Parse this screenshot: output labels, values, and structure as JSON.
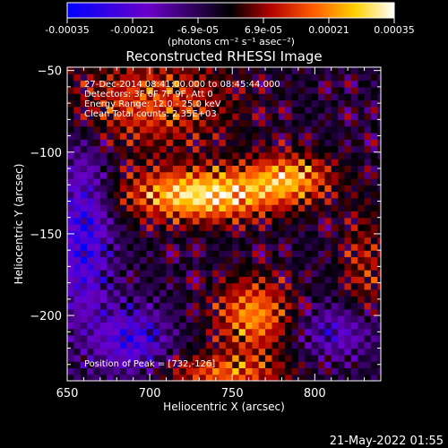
{
  "chart_data": {
    "type": "heatmap",
    "title": "Reconstructed RHESSI Image",
    "xlabel": "Heliocentric X (arcsec)",
    "ylabel": "Heliocentric Y (arcsec)",
    "xlim": [
      650,
      840
    ],
    "ylim": [
      -240,
      -48
    ],
    "x_ticks": [
      650,
      700,
      750,
      800
    ],
    "y_ticks": [
      -50,
      -100,
      -150,
      -200
    ],
    "colorbar": {
      "range": [
        -0.00035,
        0.00035
      ],
      "tick_labels": [
        "-0.00035",
        "-0.00021",
        "-6.9e-05",
        "6.9e-05",
        "0.00021",
        "0.00035"
      ],
      "unit_label": "(photons cm⁻² s⁻¹ asec⁻²)",
      "colors": [
        "#0000ff",
        "#6a00c8",
        "#000000",
        "#b00000",
        "#ff5a00",
        "#ffd000",
        "#ffffff"
      ]
    },
    "annotations": [
      "27-Dec-2014 08:41:00.000 to 08:45:44.000",
      "Detectors: 3F 6F 7F 9F, Att 0",
      "Energy Range: 12.0 - 25.0 keV",
      "Clean    Total counts: 2.35E+03"
    ],
    "peak_label": "Position of Peak = [732,-126]",
    "peak": {
      "x": 732,
      "y": -126
    },
    "sources": [
      {
        "x": 732,
        "y": -126,
        "sx": 32,
        "sy": 11,
        "amp": 0.00035
      },
      {
        "x": 785,
        "y": -115,
        "sx": 18,
        "sy": 10,
        "amp": 0.00024
      },
      {
        "x": 700,
        "y": -70,
        "sx": 35,
        "sy": 20,
        "amp": 0.00018
      },
      {
        "x": 763,
        "y": -200,
        "sx": 16,
        "sy": 16,
        "amp": 0.00025
      },
      {
        "x": 745,
        "y": -235,
        "sx": 25,
        "sy": 8,
        "amp": 0.0002
      },
      {
        "x": 830,
        "y": -170,
        "sx": 10,
        "sy": 25,
        "amp": 0.00012
      },
      {
        "x": 660,
        "y": -150,
        "sx": 12,
        "sy": 40,
        "amp": -0.00022
      },
      {
        "x": 690,
        "y": -215,
        "sx": 15,
        "sy": 15,
        "amp": -0.0002
      },
      {
        "x": 815,
        "y": -210,
        "sx": 18,
        "sy": 12,
        "amp": -0.00015
      }
    ],
    "timestamp": "21-May-2022 01:55"
  }
}
